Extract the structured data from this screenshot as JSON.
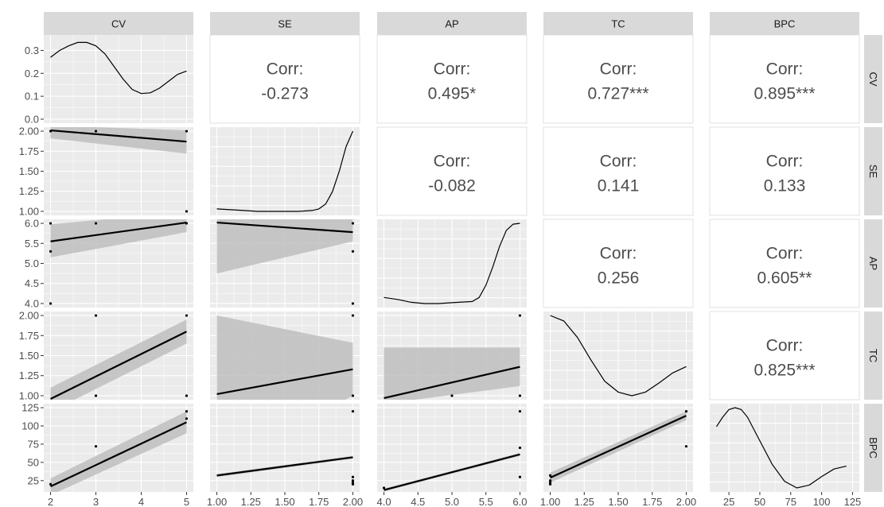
{
  "chart_data": {
    "type": "scatterplot-matrix",
    "variables": [
      "CV",
      "SE",
      "AP",
      "TC",
      "BPC"
    ],
    "axes": {
      "CV": {
        "range": [
          2,
          5
        ],
        "ticks": [
          2,
          3,
          4,
          5
        ],
        "tick_labels": [
          "2",
          "3",
          "4",
          "5"
        ],
        "density_range": [
          0,
          0.35
        ],
        "density_ticks": [
          0,
          0.1,
          0.2,
          0.3
        ],
        "density_tick_labels": [
          "0.0",
          "0.1",
          "0.2",
          "0.3"
        ]
      },
      "SE": {
        "range": [
          1,
          2
        ],
        "ticks": [
          1,
          1.25,
          1.5,
          1.75,
          2
        ],
        "tick_labels": [
          "1.00",
          "1.25",
          "1.50",
          "1.75",
          "2.00"
        ]
      },
      "AP": {
        "range": [
          4,
          6
        ],
        "ticks": [
          4,
          4.5,
          5,
          5.5,
          6
        ],
        "tick_labels": [
          "4.0",
          "4.5",
          "5.0",
          "5.5",
          "6.0"
        ]
      },
      "TC": {
        "range": [
          1,
          2
        ],
        "ticks": [
          1,
          1.25,
          1.5,
          1.75,
          2
        ],
        "tick_labels": [
          "1.00",
          "1.25",
          "1.50",
          "1.75",
          "2.00"
        ]
      },
      "BPC": {
        "range": [
          15,
          125
        ],
        "ticks": [
          25,
          50,
          75,
          100,
          125
        ],
        "tick_labels": [
          "25",
          "50",
          "75",
          "100",
          "125"
        ]
      }
    },
    "x_tick_labels_bottom": [
      [
        "2",
        "3",
        "4",
        "5"
      ],
      [
        "1.00",
        "1.25",
        "1.50",
        "1.75",
        "2.00"
      ],
      [
        "4.0",
        "4.5",
        "5.0",
        "5.5",
        "6.0"
      ],
      [
        "1.00",
        "1.25",
        "1.50",
        "1.75",
        "2.00"
      ],
      [
        "25",
        "50",
        "75",
        "100",
        "125"
      ]
    ],
    "correlations": [
      {
        "row": "CV",
        "col": "SE",
        "label": "Corr:",
        "value": "-0.273"
      },
      {
        "row": "CV",
        "col": "AP",
        "label": "Corr:",
        "value": "0.495*"
      },
      {
        "row": "CV",
        "col": "TC",
        "label": "Corr:",
        "value": "0.727***"
      },
      {
        "row": "CV",
        "col": "BPC",
        "label": "Corr:",
        "value": "0.895***"
      },
      {
        "row": "SE",
        "col": "AP",
        "label": "Corr:",
        "value": "-0.082"
      },
      {
        "row": "SE",
        "col": "TC",
        "label": "Corr:",
        "value": "0.141"
      },
      {
        "row": "SE",
        "col": "BPC",
        "label": "Corr:",
        "value": "0.133"
      },
      {
        "row": "AP",
        "col": "TC",
        "label": "Corr:",
        "value": "0.256"
      },
      {
        "row": "AP",
        "col": "BPC",
        "label": "Corr:",
        "value": "0.605**"
      },
      {
        "row": "TC",
        "col": "BPC",
        "label": "Corr:",
        "value": "0.825***"
      }
    ],
    "densities": {
      "CV": [
        [
          2,
          0.27
        ],
        [
          2.2,
          0.3
        ],
        [
          2.4,
          0.32
        ],
        [
          2.6,
          0.335
        ],
        [
          2.8,
          0.335
        ],
        [
          3.0,
          0.32
        ],
        [
          3.2,
          0.285
        ],
        [
          3.4,
          0.23
        ],
        [
          3.6,
          0.175
        ],
        [
          3.8,
          0.13
        ],
        [
          4.0,
          0.112
        ],
        [
          4.2,
          0.115
        ],
        [
          4.4,
          0.135
        ],
        [
          4.6,
          0.165
        ],
        [
          4.8,
          0.195
        ],
        [
          5.0,
          0.21
        ]
      ],
      "SE": [
        [
          1.0,
          1.04
        ],
        [
          1.1,
          1.03
        ],
        [
          1.2,
          1.02
        ],
        [
          1.3,
          1.01
        ],
        [
          1.4,
          1.01
        ],
        [
          1.5,
          1.01
        ],
        [
          1.6,
          1.01
        ],
        [
          1.7,
          1.02
        ],
        [
          1.75,
          1.04
        ],
        [
          1.8,
          1.1
        ],
        [
          1.85,
          1.25
        ],
        [
          1.9,
          1.5
        ],
        [
          1.95,
          1.8
        ],
        [
          2.0,
          1.99
        ]
      ],
      "AP": [
        [
          4.0,
          4.2
        ],
        [
          4.2,
          4.15
        ],
        [
          4.4,
          4.08
        ],
        [
          4.6,
          4.05
        ],
        [
          4.8,
          4.05
        ],
        [
          5.0,
          4.07
        ],
        [
          5.2,
          4.09
        ],
        [
          5.3,
          4.1
        ],
        [
          5.4,
          4.2
        ],
        [
          5.5,
          4.5
        ],
        [
          5.6,
          4.95
        ],
        [
          5.7,
          5.45
        ],
        [
          5.8,
          5.85
        ],
        [
          5.9,
          6.0
        ],
        [
          6.0,
          6.02
        ]
      ],
      "TC": [
        [
          1.0,
          1.99
        ],
        [
          1.1,
          1.93
        ],
        [
          1.2,
          1.75
        ],
        [
          1.3,
          1.5
        ],
        [
          1.4,
          1.27
        ],
        [
          1.5,
          1.15
        ],
        [
          1.6,
          1.11
        ],
        [
          1.7,
          1.15
        ],
        [
          1.8,
          1.25
        ],
        [
          1.9,
          1.36
        ],
        [
          2.0,
          1.43
        ]
      ],
      "BPC": [
        [
          15,
          100
        ],
        [
          20,
          110
        ],
        [
          25,
          118
        ],
        [
          30,
          120
        ],
        [
          35,
          118
        ],
        [
          40,
          110
        ],
        [
          50,
          85
        ],
        [
          60,
          60
        ],
        [
          70,
          42
        ],
        [
          80,
          35
        ],
        [
          90,
          38
        ],
        [
          100,
          47
        ],
        [
          110,
          55
        ],
        [
          120,
          58
        ]
      ]
    },
    "regressions": [
      {
        "row": "SE",
        "col": "CV",
        "y_at_xmin": 2.01,
        "y_at_xmax": 1.87,
        "band": [
          [
            1.91,
            2.07
          ],
          [
            1.72,
            2.01
          ]
        ]
      },
      {
        "row": "AP",
        "col": "CV",
        "y_at_xmin": 5.55,
        "y_at_xmax": 6.02,
        "band": [
          [
            5.15,
            5.98
          ],
          [
            5.78,
            6.28
          ]
        ]
      },
      {
        "row": "AP",
        "col": "SE",
        "y_at_xmin": 6.02,
        "y_at_xmax": 5.78,
        "band": [
          [
            4.75,
            7.3
          ],
          [
            5.55,
            6.1
          ]
        ]
      },
      {
        "row": "TC",
        "col": "CV",
        "y_at_xmin": 0.96,
        "y_at_xmax": 1.8,
        "band": [
          [
            0.8,
            1.1
          ],
          [
            1.65,
            1.95
          ]
        ]
      },
      {
        "row": "TC",
        "col": "SE",
        "y_at_xmin": 1.02,
        "y_at_xmax": 1.33,
        "band": [
          [
            0.1,
            2.0
          ],
          [
            1.0,
            1.66
          ]
        ]
      },
      {
        "row": "TC",
        "col": "AP",
        "y_at_xmin": 0.97,
        "y_at_xmax": 1.36,
        "band": [
          [
            0.9,
            1.6
          ],
          [
            1.12,
            1.6
          ]
        ]
      },
      {
        "row": "BPC",
        "col": "CV",
        "y_at_xmin": 17,
        "y_at_xmax": 105,
        "band": [
          [
            5,
            28
          ],
          [
            90,
            120
          ]
        ]
      },
      {
        "row": "BPC",
        "col": "SE",
        "y_at_xmin": 32,
        "y_at_xmax": 57,
        "band": [
          [
            30,
            34
          ],
          [
            55,
            59
          ]
        ]
      },
      {
        "row": "BPC",
        "col": "AP",
        "y_at_xmin": 12,
        "y_at_xmax": 61,
        "band": [
          [
            10,
            14
          ],
          [
            59,
            63
          ]
        ]
      },
      {
        "row": "BPC",
        "col": "TC",
        "y_at_xmin": 29,
        "y_at_xmax": 114,
        "band": [
          [
            22,
            36
          ],
          [
            108,
            120
          ]
        ]
      }
    ],
    "points": [
      {
        "row": "SE",
        "col": "CV",
        "xy": [
          [
            2,
            2
          ],
          [
            3,
            2
          ],
          [
            5,
            2
          ],
          [
            5,
            1
          ]
        ]
      },
      {
        "row": "AP",
        "col": "CV",
        "xy": [
          [
            2,
            6
          ],
          [
            3,
            6
          ],
          [
            5,
            6
          ],
          [
            2,
            4
          ],
          [
            2,
            5.3
          ]
        ]
      },
      {
        "row": "AP",
        "col": "SE",
        "xy": [
          [
            2,
            6
          ],
          [
            2,
            4
          ],
          [
            2,
            5.3
          ]
        ]
      },
      {
        "row": "TC",
        "col": "CV",
        "xy": [
          [
            3,
            2
          ],
          [
            5,
            2
          ],
          [
            3,
            1
          ],
          [
            5,
            1
          ]
        ]
      },
      {
        "row": "TC",
        "col": "SE",
        "xy": [
          [
            2,
            2
          ],
          [
            2,
            1
          ]
        ]
      },
      {
        "row": "TC",
        "col": "AP",
        "xy": [
          [
            6,
            2
          ],
          [
            5,
            1
          ],
          [
            6,
            1
          ]
        ]
      },
      {
        "row": "BPC",
        "col": "CV",
        "xy": [
          [
            2,
            20
          ],
          [
            3,
            72
          ],
          [
            5,
            120
          ],
          [
            5,
            110
          ]
        ]
      },
      {
        "row": "BPC",
        "col": "SE",
        "xy": [
          [
            2,
            120
          ],
          [
            2,
            30
          ],
          [
            2,
            25
          ],
          [
            2,
            22
          ],
          [
            2,
            20
          ]
        ]
      },
      {
        "row": "BPC",
        "col": "AP",
        "xy": [
          [
            6,
            120
          ],
          [
            6,
            70
          ],
          [
            6,
            30
          ],
          [
            4,
            15
          ]
        ]
      },
      {
        "row": "BPC",
        "col": "TC",
        "xy": [
          [
            2,
            120
          ],
          [
            1,
            32
          ],
          [
            1,
            25
          ],
          [
            1,
            22
          ],
          [
            1,
            20
          ],
          [
            2,
            72
          ]
        ]
      }
    ],
    "colors": {
      "panel_background": "#ebebeb",
      "grid": "#ffffff",
      "strip_background": "#d9d9d9",
      "band": "#bebebe",
      "line": "#000000",
      "text": "#4d4d4d"
    },
    "title": "",
    "xlabel": "",
    "ylabel": ""
  }
}
